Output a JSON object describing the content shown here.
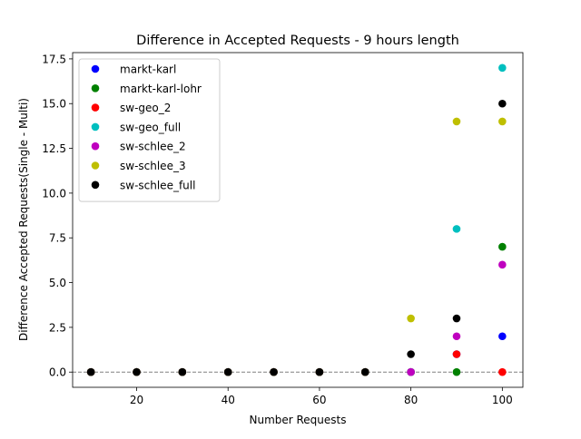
{
  "chart_data": {
    "type": "scatter",
    "title": "Difference in Accepted Requests - 9 hours length",
    "xlabel": "Number Requests",
    "ylabel": "Difference Accepted Requests(Single - Multi)",
    "xlim": [
      6,
      104.5
    ],
    "ylim": [
      -0.85,
      17.85
    ],
    "xticks": [
      20,
      40,
      60,
      80,
      100
    ],
    "yticks": [
      0.0,
      2.5,
      5.0,
      7.5,
      10.0,
      12.5,
      15.0,
      17.5
    ],
    "xtick_labels": [
      "20",
      "40",
      "60",
      "80",
      "100"
    ],
    "ytick_labels": [
      "0.0",
      "2.5",
      "5.0",
      "7.5",
      "10.0",
      "12.5",
      "15.0",
      "17.5"
    ],
    "grid": false,
    "legend_position": "upper-left",
    "reference_line": {
      "y": 0,
      "style": "dashed",
      "color": "#808080"
    },
    "x": [
      10,
      20,
      30,
      40,
      50,
      60,
      70,
      80,
      90,
      100
    ],
    "series": [
      {
        "name": "markt-karl",
        "color": "#0000ff",
        "values": [
          0,
          0,
          0,
          0,
          0,
          0,
          0,
          0,
          1,
          2
        ]
      },
      {
        "name": "markt-karl-lohr",
        "color": "#008000",
        "values": [
          0,
          0,
          0,
          0,
          0,
          0,
          0,
          0,
          0,
          7
        ]
      },
      {
        "name": "sw-geo_2",
        "color": "#ff0000",
        "values": [
          0,
          0,
          0,
          0,
          0,
          0,
          0,
          0,
          1,
          0
        ]
      },
      {
        "name": "sw-geo_full",
        "color": "#00bfbf",
        "values": [
          0,
          0,
          0,
          0,
          0,
          0,
          0,
          0,
          8,
          17
        ]
      },
      {
        "name": "sw-schlee_2",
        "color": "#bf00bf",
        "values": [
          0,
          0,
          0,
          0,
          0,
          0,
          0,
          0,
          2,
          6
        ]
      },
      {
        "name": "sw-schlee_3",
        "color": "#bfbf00",
        "values": [
          0,
          0,
          0,
          0,
          0,
          0,
          0,
          3,
          14,
          14
        ]
      },
      {
        "name": "sw-schlee_full",
        "color": "#000000",
        "values": [
          0,
          0,
          0,
          0,
          0,
          0,
          0,
          1,
          3,
          15
        ]
      }
    ]
  }
}
